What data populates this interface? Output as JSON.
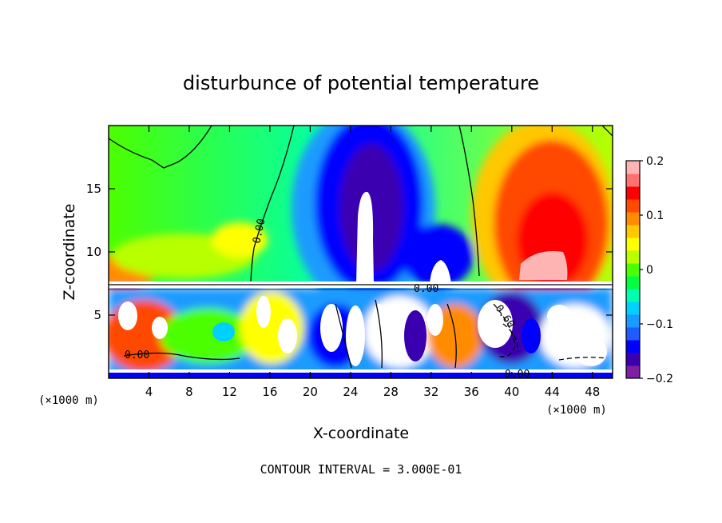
{
  "chart_data": {
    "type": "heatmap",
    "title": "disturbunce of potential temperature",
    "xlabel": "X-coordinate",
    "ylabel": "Z-coordinate",
    "x_unit_left": "(×1000 m)",
    "x_unit_right": "(×1000 m)",
    "xlim": [
      0,
      50
    ],
    "ylim": [
      0,
      20
    ],
    "x_ticks": [
      "4",
      "8",
      "12",
      "16",
      "20",
      "24",
      "28",
      "32",
      "36",
      "40",
      "44",
      "48"
    ],
    "y_ticks": [
      "5",
      "10",
      "15"
    ],
    "colorbar": {
      "range": [
        -0.2,
        0.2
      ],
      "tick_labels": [
        "0.2",
        "0.1",
        "0",
        "−0.1",
        "−0.2"
      ],
      "colors": [
        "#7f1fa3",
        "#3a00b0",
        "#0000ff",
        "#1e5cff",
        "#1a9bff",
        "#00d0ff",
        "#00ffb0",
        "#00ff40",
        "#4cff00",
        "#b8ff00",
        "#ffff00",
        "#ffc800",
        "#ff8c00",
        "#ff4a00",
        "#ff0000",
        "#ff7070",
        "#ffb4b4"
      ]
    },
    "contour_labels": [
      "0.00",
      "0.00",
      "0.00",
      "0.60",
      "0.00"
    ],
    "footer": "CONTOUR INTERVAL = 3.000E-01"
  }
}
